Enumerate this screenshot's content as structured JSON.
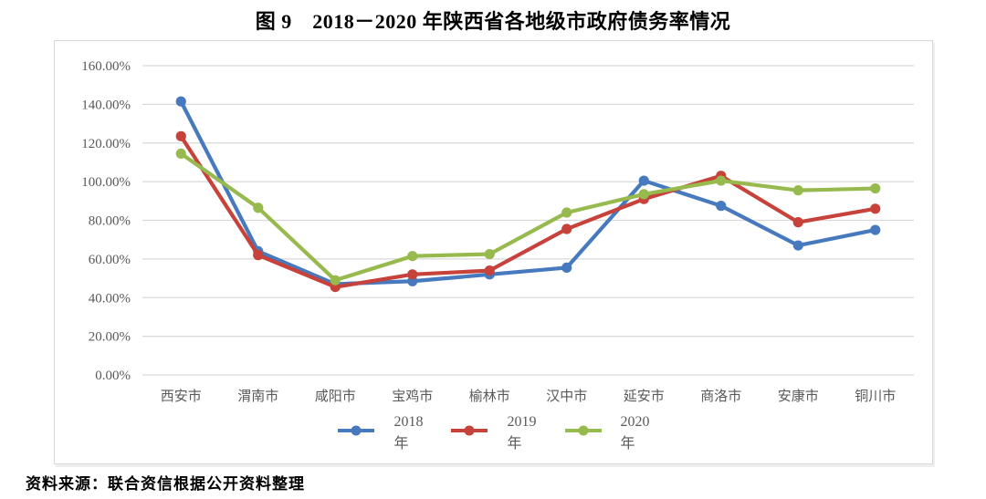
{
  "title": "图 9　2018－2020 年陕西省各地级市政府债务率情况",
  "source": "资料来源：联合资信根据公开资料整理",
  "chart_data": {
    "type": "line",
    "title": "图 9　2018－2020 年陕西省各地级市政府债务率情况",
    "xlabel": "",
    "ylabel": "",
    "grid": true,
    "legend_position": "bottom",
    "ylim": [
      0,
      160
    ],
    "ytick_step": 20,
    "ytick_labels": [
      "0.00%",
      "20.00%",
      "40.00%",
      "60.00%",
      "80.00%",
      "100.00%",
      "120.00%",
      "140.00%",
      "160.00%"
    ],
    "categories": [
      "西安市",
      "渭南市",
      "咸阳市",
      "宝鸡市",
      "榆林市",
      "汉中市",
      "延安市",
      "商洛市",
      "安康市",
      "铜川市"
    ],
    "series": [
      {
        "name": "2018年",
        "color": "#4679BD",
        "values": [
          141.5,
          64,
          47,
          48.5,
          52,
          55.5,
          100.5,
          87.5,
          67,
          75
        ]
      },
      {
        "name": "2019年",
        "color": "#C7423A",
        "values": [
          123.5,
          62,
          45.5,
          52,
          54,
          75.5,
          91,
          103,
          79,
          86
        ]
      },
      {
        "name": "2020年",
        "color": "#97BA4E",
        "values": [
          114.5,
          86.5,
          49,
          61.5,
          62.5,
          84,
          93.5,
          100.5,
          95.5,
          96.5
        ]
      }
    ],
    "gridline_color": "#d9d9d9",
    "tick_label_color": "#595959"
  }
}
